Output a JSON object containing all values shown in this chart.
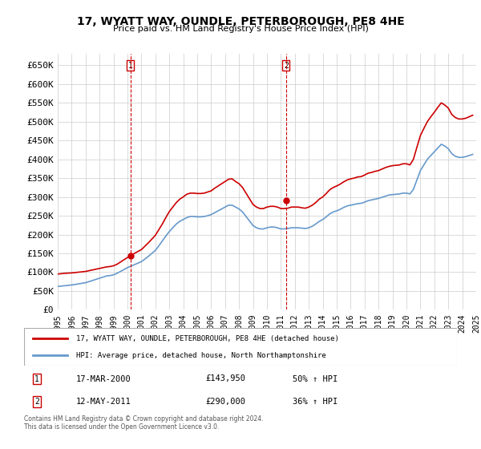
{
  "title": "17, WYATT WAY, OUNDLE, PETERBOROUGH, PE8 4HE",
  "subtitle": "Price paid vs. HM Land Registry's House Price Index (HPI)",
  "xlabel": "",
  "ylabel": "",
  "ylim": [
    0,
    680000
  ],
  "yticks": [
    0,
    50000,
    100000,
    150000,
    200000,
    250000,
    300000,
    350000,
    400000,
    450000,
    500000,
    550000,
    600000,
    650000
  ],
  "ytick_labels": [
    "£0",
    "£50K",
    "£100K",
    "£150K",
    "£200K",
    "£250K",
    "£300K",
    "£350K",
    "£400K",
    "£450K",
    "£500K",
    "£550K",
    "£600K",
    "£650K"
  ],
  "x_start_year": 1995,
  "x_end_year": 2025,
  "background_color": "#ffffff",
  "grid_color": "#cccccc",
  "sale1_date": 2000.21,
  "sale1_price": 143950,
  "sale1_label": "1",
  "sale2_date": 2011.37,
  "sale2_price": 290000,
  "sale2_label": "2",
  "sale1_vline_color": "#cc0000",
  "sale2_vline_color": "#cc0000",
  "marker_color": "#cc0000",
  "hpi_line_color": "#6699cc",
  "price_line_color": "#cc0000",
  "legend_line1": "17, WYATT WAY, OUNDLE, PETERBOROUGH, PE8 4HE (detached house)",
  "legend_line2": "HPI: Average price, detached house, North Northamptonshire",
  "table_row1_num": "1",
  "table_row1_date": "17-MAR-2000",
  "table_row1_price": "£143,950",
  "table_row1_hpi": "50% ↑ HPI",
  "table_row2_num": "2",
  "table_row2_date": "12-MAY-2011",
  "table_row2_price": "£290,000",
  "table_row2_hpi": "36% ↑ HPI",
  "footer_text": "Contains HM Land Registry data © Crown copyright and database right 2024.\nThis data is licensed under the Open Government Licence v3.0.",
  "hpi_data_x": [
    1995.0,
    1995.25,
    1995.5,
    1995.75,
    1996.0,
    1996.25,
    1996.5,
    1996.75,
    1997.0,
    1997.25,
    1997.5,
    1997.75,
    1998.0,
    1998.25,
    1998.5,
    1998.75,
    1999.0,
    1999.25,
    1999.5,
    1999.75,
    2000.0,
    2000.25,
    2000.5,
    2000.75,
    2001.0,
    2001.25,
    2001.5,
    2001.75,
    2002.0,
    2002.25,
    2002.5,
    2002.75,
    2003.0,
    2003.25,
    2003.5,
    2003.75,
    2004.0,
    2004.25,
    2004.5,
    2004.75,
    2005.0,
    2005.25,
    2005.5,
    2005.75,
    2006.0,
    2006.25,
    2006.5,
    2006.75,
    2007.0,
    2007.25,
    2007.5,
    2007.75,
    2008.0,
    2008.25,
    2008.5,
    2008.75,
    2009.0,
    2009.25,
    2009.5,
    2009.75,
    2010.0,
    2010.25,
    2010.5,
    2010.75,
    2011.0,
    2011.25,
    2011.5,
    2011.75,
    2012.0,
    2012.25,
    2012.5,
    2012.75,
    2013.0,
    2013.25,
    2013.5,
    2013.75,
    2014.0,
    2014.25,
    2014.5,
    2014.75,
    2015.0,
    2015.25,
    2015.5,
    2015.75,
    2016.0,
    2016.25,
    2016.5,
    2016.75,
    2017.0,
    2017.25,
    2017.5,
    2017.75,
    2018.0,
    2018.25,
    2018.5,
    2018.75,
    2019.0,
    2019.25,
    2019.5,
    2019.75,
    2020.0,
    2020.25,
    2020.5,
    2020.75,
    2021.0,
    2021.25,
    2021.5,
    2021.75,
    2022.0,
    2022.25,
    2022.5,
    2022.75,
    2023.0,
    2023.25,
    2023.5,
    2023.75,
    2024.0,
    2024.25,
    2024.5,
    2024.75
  ],
  "hpi_data_y": [
    62000,
    63000,
    64000,
    65000,
    66000,
    67500,
    69000,
    70500,
    72000,
    75000,
    78000,
    81000,
    84000,
    87000,
    90000,
    91000,
    93000,
    97000,
    102000,
    107000,
    112000,
    116000,
    120000,
    124000,
    128000,
    135000,
    142000,
    150000,
    158000,
    170000,
    183000,
    196000,
    208000,
    218000,
    228000,
    235000,
    240000,
    245000,
    248000,
    248000,
    247000,
    247000,
    248000,
    250000,
    253000,
    258000,
    263000,
    268000,
    273000,
    278000,
    278000,
    273000,
    268000,
    260000,
    248000,
    236000,
    224000,
    218000,
    215000,
    215000,
    218000,
    220000,
    220000,
    218000,
    215000,
    215000,
    216000,
    218000,
    218000,
    218000,
    217000,
    216000,
    218000,
    222000,
    228000,
    235000,
    240000,
    247000,
    255000,
    260000,
    263000,
    267000,
    272000,
    276000,
    278000,
    280000,
    282000,
    283000,
    286000,
    290000,
    292000,
    294000,
    296000,
    299000,
    302000,
    305000,
    306000,
    307000,
    308000,
    310000,
    310000,
    308000,
    320000,
    345000,
    370000,
    385000,
    400000,
    410000,
    420000,
    430000,
    440000,
    435000,
    428000,
    415000,
    408000,
    405000,
    405000,
    407000,
    410000,
    413000
  ],
  "price_data_x": [
    1995.0,
    1995.25,
    1995.5,
    1995.75,
    1996.0,
    1996.25,
    1996.5,
    1996.75,
    1997.0,
    1997.25,
    1997.5,
    1997.75,
    1998.0,
    1998.25,
    1998.5,
    1998.75,
    1999.0,
    1999.25,
    1999.5,
    1999.75,
    2000.0,
    2000.25,
    2000.5,
    2000.75,
    2001.0,
    2001.25,
    2001.5,
    2001.75,
    2002.0,
    2002.25,
    2002.5,
    2002.75,
    2003.0,
    2003.25,
    2003.5,
    2003.75,
    2004.0,
    2004.25,
    2004.5,
    2004.75,
    2005.0,
    2005.25,
    2005.5,
    2005.75,
    2006.0,
    2006.25,
    2006.5,
    2006.75,
    2007.0,
    2007.25,
    2007.5,
    2007.75,
    2008.0,
    2008.25,
    2008.5,
    2008.75,
    2009.0,
    2009.25,
    2009.5,
    2009.75,
    2010.0,
    2010.25,
    2010.5,
    2010.75,
    2011.0,
    2011.25,
    2011.5,
    2011.75,
    2012.0,
    2012.25,
    2012.5,
    2012.75,
    2013.0,
    2013.25,
    2013.5,
    2013.75,
    2014.0,
    2014.25,
    2014.5,
    2014.75,
    2015.0,
    2015.25,
    2015.5,
    2015.75,
    2016.0,
    2016.25,
    2016.5,
    2016.75,
    2017.0,
    2017.25,
    2017.5,
    2017.75,
    2018.0,
    2018.25,
    2018.5,
    2018.75,
    2019.0,
    2019.25,
    2019.5,
    2019.75,
    2020.0,
    2020.25,
    2020.5,
    2020.75,
    2021.0,
    2021.25,
    2021.5,
    2021.75,
    2022.0,
    2022.25,
    2022.5,
    2022.75,
    2023.0,
    2023.25,
    2023.5,
    2023.75,
    2024.0,
    2024.25,
    2024.5,
    2024.75
  ],
  "price_data_y": [
    95000,
    96000,
    97000,
    97500,
    98000,
    99000,
    100000,
    101000,
    102000,
    104000,
    106000,
    108000,
    110000,
    112000,
    114000,
    115000,
    117000,
    121000,
    127000,
    133000,
    139000,
    144000,
    150000,
    155000,
    160000,
    169000,
    178000,
    188000,
    198000,
    213000,
    228000,
    245000,
    261000,
    273000,
    285000,
    294000,
    300000,
    307000,
    310000,
    310000,
    309000,
    309000,
    310000,
    313000,
    316000,
    323000,
    329000,
    335000,
    341000,
    347000,
    348000,
    341000,
    335000,
    325000,
    310000,
    295000,
    280000,
    273000,
    269000,
    269000,
    273000,
    275000,
    275000,
    273000,
    269000,
    269000,
    270000,
    273000,
    273000,
    273000,
    271000,
    270000,
    273000,
    278000,
    285000,
    294000,
    300000,
    309000,
    319000,
    325000,
    329000,
    334000,
    340000,
    345000,
    348000,
    350000,
    353000,
    354000,
    358000,
    363000,
    365000,
    368000,
    370000,
    374000,
    378000,
    381000,
    383000,
    384000,
    385000,
    388000,
    388000,
    385000,
    400000,
    432000,
    463000,
    482000,
    500000,
    513000,
    525000,
    538000,
    550000,
    544000,
    536000,
    519000,
    511000,
    507000,
    507000,
    509000,
    513000,
    517000
  ]
}
